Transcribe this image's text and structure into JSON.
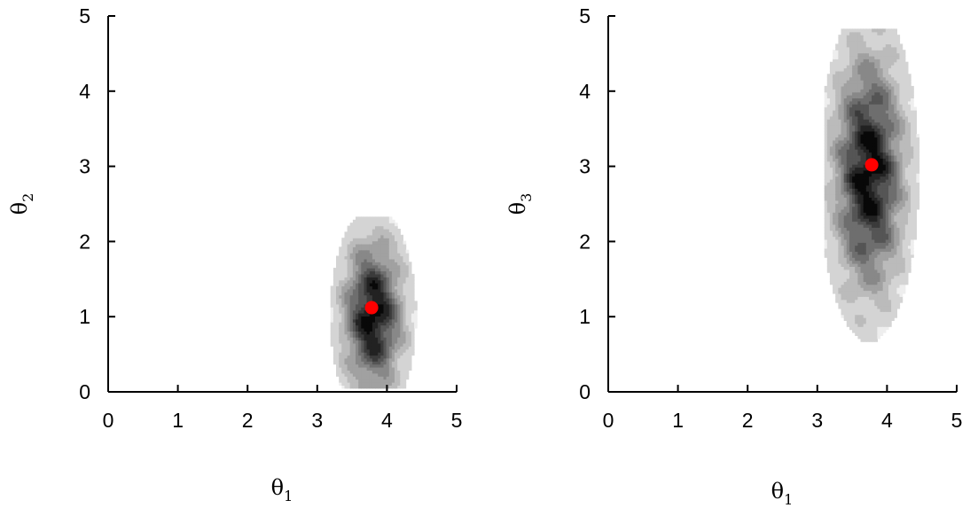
{
  "chart_data": [
    {
      "type": "heatmap",
      "xlabel": "θ1",
      "xlabel_symbol": "θ",
      "xlabel_subscript": "1",
      "ylabel": "θ2",
      "ylabel_symbol": "θ",
      "ylabel_subscript": "2",
      "xlim": [
        0,
        5
      ],
      "ylim": [
        0,
        5
      ],
      "xticks": [
        "0",
        "1",
        "2",
        "3",
        "4",
        "5"
      ],
      "yticks": [
        "0",
        "1",
        "2",
        "3",
        "4",
        "5"
      ],
      "grid": false,
      "colormap": "grayscale density (darker = higher)",
      "density_center": [
        3.78,
        1.0
      ],
      "density_spread": [
        0.3,
        0.7
      ],
      "density_extent": {
        "x": [
          3.15,
          4.45
        ],
        "y": [
          0.05,
          2.3
        ]
      },
      "marker": {
        "x": 3.78,
        "y": 1.12,
        "color": "#ff0000"
      }
    },
    {
      "type": "heatmap",
      "xlabel": "θ1",
      "xlabel_symbol": "θ",
      "xlabel_subscript": "1",
      "ylabel": "θ3",
      "ylabel_symbol": "θ",
      "ylabel_subscript": "3",
      "xlim": [
        0,
        5
      ],
      "ylim": [
        0,
        5
      ],
      "xticks": [
        "0",
        "1",
        "2",
        "3",
        "4",
        "5"
      ],
      "yticks": [
        "0",
        "1",
        "2",
        "3",
        "4",
        "5"
      ],
      "grid": false,
      "colormap": "grayscale density (darker = higher)",
      "density_center": [
        3.72,
        2.9
      ],
      "density_spread": [
        0.35,
        1.1
      ],
      "density_extent": {
        "x": [
          3.1,
          4.45
        ],
        "y": [
          0.55,
          4.8
        ]
      },
      "marker": {
        "x": 3.78,
        "y": 3.02,
        "color": "#ff0000"
      }
    }
  ]
}
